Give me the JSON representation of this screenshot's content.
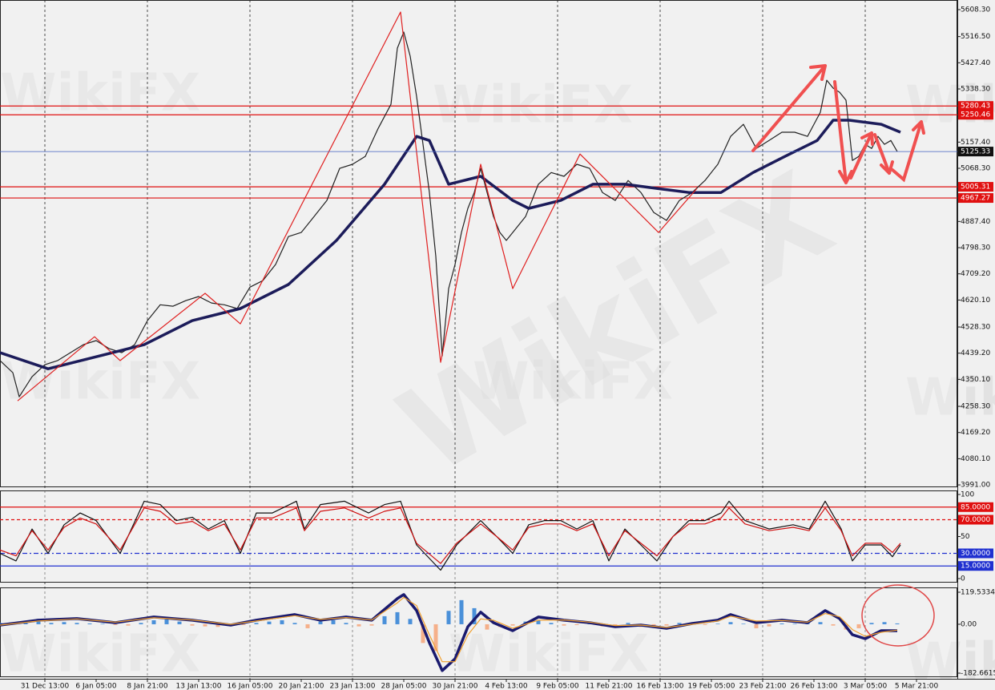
{
  "watermark": "WikiFX",
  "chart_data": [
    {
      "type": "line",
      "xlim": [
        0,
        597.5
      ],
      "ylim": [
        3983,
        5641
      ],
      "grid": true,
      "xticks": [
        {
          "value": 28,
          "label": "31 Dec 13:00"
        },
        {
          "value": 60,
          "label": "6 Jan 05:00"
        },
        {
          "value": 92,
          "label": "8 Jan 21:00"
        },
        {
          "value": 124,
          "label": "13 Jan 13:00"
        },
        {
          "value": 156,
          "label": "16 Jan 05:00"
        },
        {
          "value": 188,
          "label": "20 Jan 21:00"
        },
        {
          "value": 220,
          "label": "23 Jan 13:00"
        },
        {
          "value": 252,
          "label": "28 Jan 05:00"
        },
        {
          "value": 284,
          "label": "30 Jan 21:00"
        },
        {
          "value": 316,
          "label": "4 Feb 13:00"
        },
        {
          "value": 348,
          "label": "9 Feb 05:00"
        },
        {
          "value": 380,
          "label": "11 Feb 21:00"
        },
        {
          "value": 412,
          "label": "16 Feb 13:00"
        },
        {
          "value": 444,
          "label": "19 Feb 05:00"
        },
        {
          "value": 476,
          "label": "23 Feb 21:00"
        },
        {
          "value": 508,
          "label": "26 Feb 13:00"
        },
        {
          "value": 540,
          "label": "3 Mar 05:00"
        },
        {
          "value": 572,
          "label": "5 Mar 21:00"
        }
      ],
      "yticks": [
        {
          "value": 5608.3,
          "label": "5608.30"
        },
        {
          "value": 5516.5,
          "label": "5516.50"
        },
        {
          "value": 5427.4,
          "label": "5427.40"
        },
        {
          "value": 5338.3,
          "label": "5338.30"
        },
        {
          "value": 5157.4,
          "label": "5157.40"
        },
        {
          "value": 5068.3,
          "label": "5068.30"
        },
        {
          "value": 4887.4,
          "label": "4887.40"
        },
        {
          "value": 4798.3,
          "label": "4798.30"
        },
        {
          "value": 4709.2,
          "label": "4709.20"
        },
        {
          "value": 4620.1,
          "label": "4620.10"
        },
        {
          "value": 4528.3,
          "label": "4528.30"
        },
        {
          "value": 4439.2,
          "label": "4439.20"
        },
        {
          "value": 4350.1,
          "label": "4350.10"
        },
        {
          "value": 4258.3,
          "label": "4258.30"
        },
        {
          "value": 4169.2,
          "label": "4169.20"
        },
        {
          "value": 4080.1,
          "label": "4080.10"
        },
        {
          "value": 3991.0,
          "label": "3991.00"
        }
      ],
      "levels": [
        5280.43,
        5250.46,
        5005.31,
        4967.27
      ],
      "level_colors": [
        "#e01010",
        "#e01010",
        "#e01010",
        "#e01010"
      ],
      "level_styles": [
        "solid",
        "solid",
        "solid",
        "solid"
      ],
      "last_price": 5125.33,
      "last_price_color": "#4060c0",
      "series": [
        {
          "color": "#222222",
          "thick": false,
          "x": [
            0,
            8,
            12,
            20,
            28,
            36,
            44,
            52,
            60,
            68,
            76,
            84,
            92,
            100,
            108,
            116,
            124,
            132,
            140,
            148,
            156,
            164,
            172,
            180,
            188,
            196,
            204,
            212,
            220,
            228,
            236,
            244,
            248,
            252,
            256,
            260,
            264,
            268,
            272,
            276,
            280,
            284,
            288,
            292,
            296,
            300,
            304,
            308,
            312,
            316,
            320,
            328,
            336,
            344,
            352,
            360,
            368,
            376,
            384,
            392,
            400,
            408,
            416,
            424,
            432,
            440,
            448,
            456,
            464,
            472,
            480,
            488,
            496,
            504,
            512,
            516,
            520,
            524,
            528,
            532,
            536,
            540,
            544,
            548,
            552,
            556,
            560
          ],
          "values": [
            4414,
            4373,
            4291,
            4359,
            4400,
            4414,
            4441,
            4468,
            4482,
            4455,
            4441,
            4468,
            4550,
            4604,
            4599,
            4618,
            4632,
            4610,
            4604,
            4591,
            4664,
            4686,
            4741,
            4836,
            4850,
            4904,
            4959,
            5068,
            5082,
            5109,
            5204,
            5286,
            5477,
            5532,
            5450,
            5313,
            5150,
            4986,
            4768,
            4430,
            4659,
            4741,
            4850,
            4932,
            4986,
            5068,
            4986,
            4904,
            4850,
            4823,
            4850,
            4904,
            5014,
            5054,
            5041,
            5082,
            5068,
            4986,
            4959,
            5027,
            4986,
            4918,
            4891,
            4959,
            4986,
            5027,
            5082,
            5177,
            5218,
            5136,
            5163,
            5191,
            5191,
            5177,
            5259,
            5368,
            5341,
            5327,
            5300,
            5095,
            5109,
            5150,
            5136,
            5177,
            5150,
            5163,
            5125
          ]
        },
        {
          "color": "#1c1c5a",
          "thick": true,
          "x": [
            0,
            30,
            60,
            90,
            120,
            150,
            180,
            210,
            240,
            260,
            268,
            280,
            300,
            320,
            330,
            350,
            370,
            390,
            410,
            430,
            450,
            470,
            490,
            510,
            520,
            530,
            550,
            562
          ],
          "values": [
            4441,
            4386,
            4427,
            4468,
            4550,
            4591,
            4673,
            4823,
            5014,
            5177,
            5163,
            5014,
            5041,
            4959,
            4932,
            4959,
            5014,
            5014,
            5000,
            4986,
            4986,
            5054,
            5109,
            5163,
            5232,
            5232,
            5218,
            5191
          ]
        },
        {
          "color": "#e02020",
          "thick": false,
          "x": [
            11,
            59,
            75,
            128,
            150,
            250,
            275,
            300,
            320,
            362,
            411,
            435
          ],
          "values": [
            4277,
            4495,
            4414,
            4643,
            4539,
            5600,
            4408,
            5082,
            4659,
            5117,
            4850,
            5000
          ]
        }
      ]
    },
    {
      "type": "line",
      "xlim": [
        0,
        597.5
      ],
      "ylim": [
        -4.8,
        104.8
      ],
      "yticks": [
        100,
        50,
        0
      ],
      "levels": [
        {
          "value": 85,
          "label": "85.0000"
        },
        {
          "value": 70,
          "label": "70.0000"
        },
        {
          "value": 30,
          "label": "30.0000"
        },
        {
          "value": 15,
          "label": "15.0000"
        }
      ],
      "level_colors": [
        "#e01010",
        "#e01010",
        "#2030d0",
        "#2030d0"
      ],
      "level_styles": [
        "solid",
        "dashed",
        "dashdot",
        "solid"
      ],
      "series": [
        {
          "color": "#111111",
          "thick": false,
          "x": [
            0,
            10,
            20,
            30,
            40,
            50,
            60,
            75,
            90,
            100,
            110,
            120,
            130,
            140,
            150,
            160,
            170,
            185,
            190,
            200,
            215,
            230,
            240,
            250,
            260,
            275,
            285,
            300,
            310,
            320,
            330,
            340,
            350,
            360,
            370,
            380,
            390,
            400,
            410,
            420,
            430,
            440,
            450,
            455,
            465,
            480,
            495,
            505,
            515,
            525,
            532,
            540,
            550,
            557,
            562
          ],
          "values": [
            30,
            21,
            59,
            30,
            64,
            78,
            69,
            30,
            92,
            88,
            69,
            73,
            59,
            69,
            30,
            78,
            78,
            92,
            59,
            88,
            92,
            78,
            88,
            92,
            40,
            10,
            40,
            69,
            50,
            30,
            64,
            69,
            69,
            59,
            69,
            21,
            59,
            40,
            21,
            50,
            69,
            69,
            78,
            92,
            69,
            59,
            64,
            59,
            92,
            59,
            21,
            40,
            40,
            26,
            40
          ]
        },
        {
          "color": "#d01010",
          "thick": false,
          "x": [
            0,
            10,
            20,
            30,
            40,
            50,
            60,
            75,
            90,
            100,
            110,
            120,
            130,
            140,
            150,
            160,
            170,
            185,
            190,
            200,
            215,
            230,
            240,
            250,
            260,
            275,
            285,
            300,
            310,
            320,
            330,
            340,
            350,
            360,
            370,
            380,
            390,
            400,
            410,
            420,
            430,
            440,
            450,
            455,
            465,
            480,
            495,
            505,
            515,
            525,
            532,
            540,
            550,
            557,
            562
          ],
          "values": [
            34,
            27,
            57,
            34,
            61,
            72,
            65,
            34,
            84,
            80,
            65,
            68,
            57,
            65,
            34,
            72,
            72,
            84,
            57,
            80,
            84,
            72,
            80,
            84,
            42,
            18,
            42,
            65,
            50,
            34,
            61,
            65,
            65,
            57,
            65,
            27,
            57,
            42,
            27,
            50,
            65,
            65,
            72,
            84,
            65,
            57,
            61,
            57,
            84,
            57,
            27,
            42,
            42,
            31,
            42
          ]
        }
      ]
    },
    {
      "type": "bar",
      "xlim": [
        0,
        597.5
      ],
      "ylim": [
        -197.6,
        137.5
      ],
      "yticks": [
        119.5334,
        {
          "value": 0,
          "label": "0.00"
        },
        -182.6615
      ],
      "positive_color": "#4a90d9",
      "negative_color": "#f5b08a",
      "x": [
        0,
        8,
        16,
        24,
        32,
        40,
        48,
        56,
        64,
        72,
        80,
        88,
        96,
        104,
        112,
        120,
        128,
        136,
        144,
        152,
        160,
        168,
        176,
        184,
        192,
        200,
        208,
        216,
        224,
        232,
        240,
        248,
        256,
        264,
        272,
        280,
        288,
        296,
        304,
        312,
        320,
        328,
        336,
        344,
        352,
        360,
        368,
        376,
        384,
        392,
        400,
        408,
        416,
        424,
        432,
        440,
        448,
        456,
        464,
        472,
        480,
        488,
        496,
        504,
        512,
        520,
        528,
        536,
        544,
        552,
        560
      ],
      "values": [
        5,
        5,
        8,
        20,
        5,
        8,
        5,
        3,
        2,
        -3,
        -5,
        5,
        15,
        18,
        10,
        -5,
        -8,
        -10,
        -5,
        -3,
        5,
        10,
        15,
        5,
        -15,
        10,
        15,
        5,
        -8,
        -5,
        30,
        45,
        20,
        -70,
        -100,
        50,
        90,
        60,
        -20,
        -10,
        -5,
        10,
        15,
        5,
        -5,
        -3,
        3,
        -8,
        -3,
        5,
        -10,
        -12,
        -5,
        5,
        3,
        -3,
        2,
        8,
        2,
        -15,
        -8,
        3,
        2,
        5,
        8,
        -5,
        -20,
        -15,
        5,
        8,
        3
      ],
      "series": [
        {
          "color": "#1a1a6e",
          "thick": true,
          "x": [
            0,
            24,
            48,
            72,
            96,
            120,
            144,
            160,
            184,
            200,
            216,
            232,
            248,
            252,
            260,
            268,
            276,
            284,
            292,
            300,
            308,
            320,
            336,
            352,
            368,
            384,
            400,
            416,
            432,
            448,
            456,
            472,
            488,
            504,
            515,
            524,
            532,
            540,
            550,
            560
          ],
          "values": [
            -3,
            15,
            21,
            6,
            27,
            15,
            -3,
            15,
            36,
            15,
            27,
            15,
            96,
            111,
            51,
            -69,
            -173,
            -129,
            -9,
            45,
            6,
            -24,
            27,
            15,
            6,
            -9,
            -3,
            -15,
            3,
            15,
            36,
            6,
            15,
            6,
            51,
            21,
            -39,
            -54,
            -24,
            -24
          ]
        },
        {
          "color": "#f0a030",
          "thick": false,
          "x": [
            0,
            24,
            48,
            72,
            96,
            120,
            144,
            160,
            184,
            200,
            216,
            232,
            248,
            252,
            260,
            268,
            276,
            284,
            292,
            300,
            308,
            320,
            336,
            352,
            368,
            384,
            400,
            416,
            432,
            448,
            456,
            472,
            488,
            504,
            515,
            524,
            532,
            540,
            550,
            560
          ],
          "values": [
            -3,
            12,
            20,
            8,
            24,
            16,
            0,
            12,
            32,
            18,
            25,
            16,
            80,
            100,
            70,
            -40,
            -140,
            -140,
            -40,
            20,
            15,
            -15,
            15,
            16,
            8,
            -5,
            -3,
            -12,
            0,
            12,
            30,
            12,
            14,
            8,
            40,
            28,
            -20,
            -45,
            -30,
            -22
          ]
        }
      ]
    }
  ]
}
